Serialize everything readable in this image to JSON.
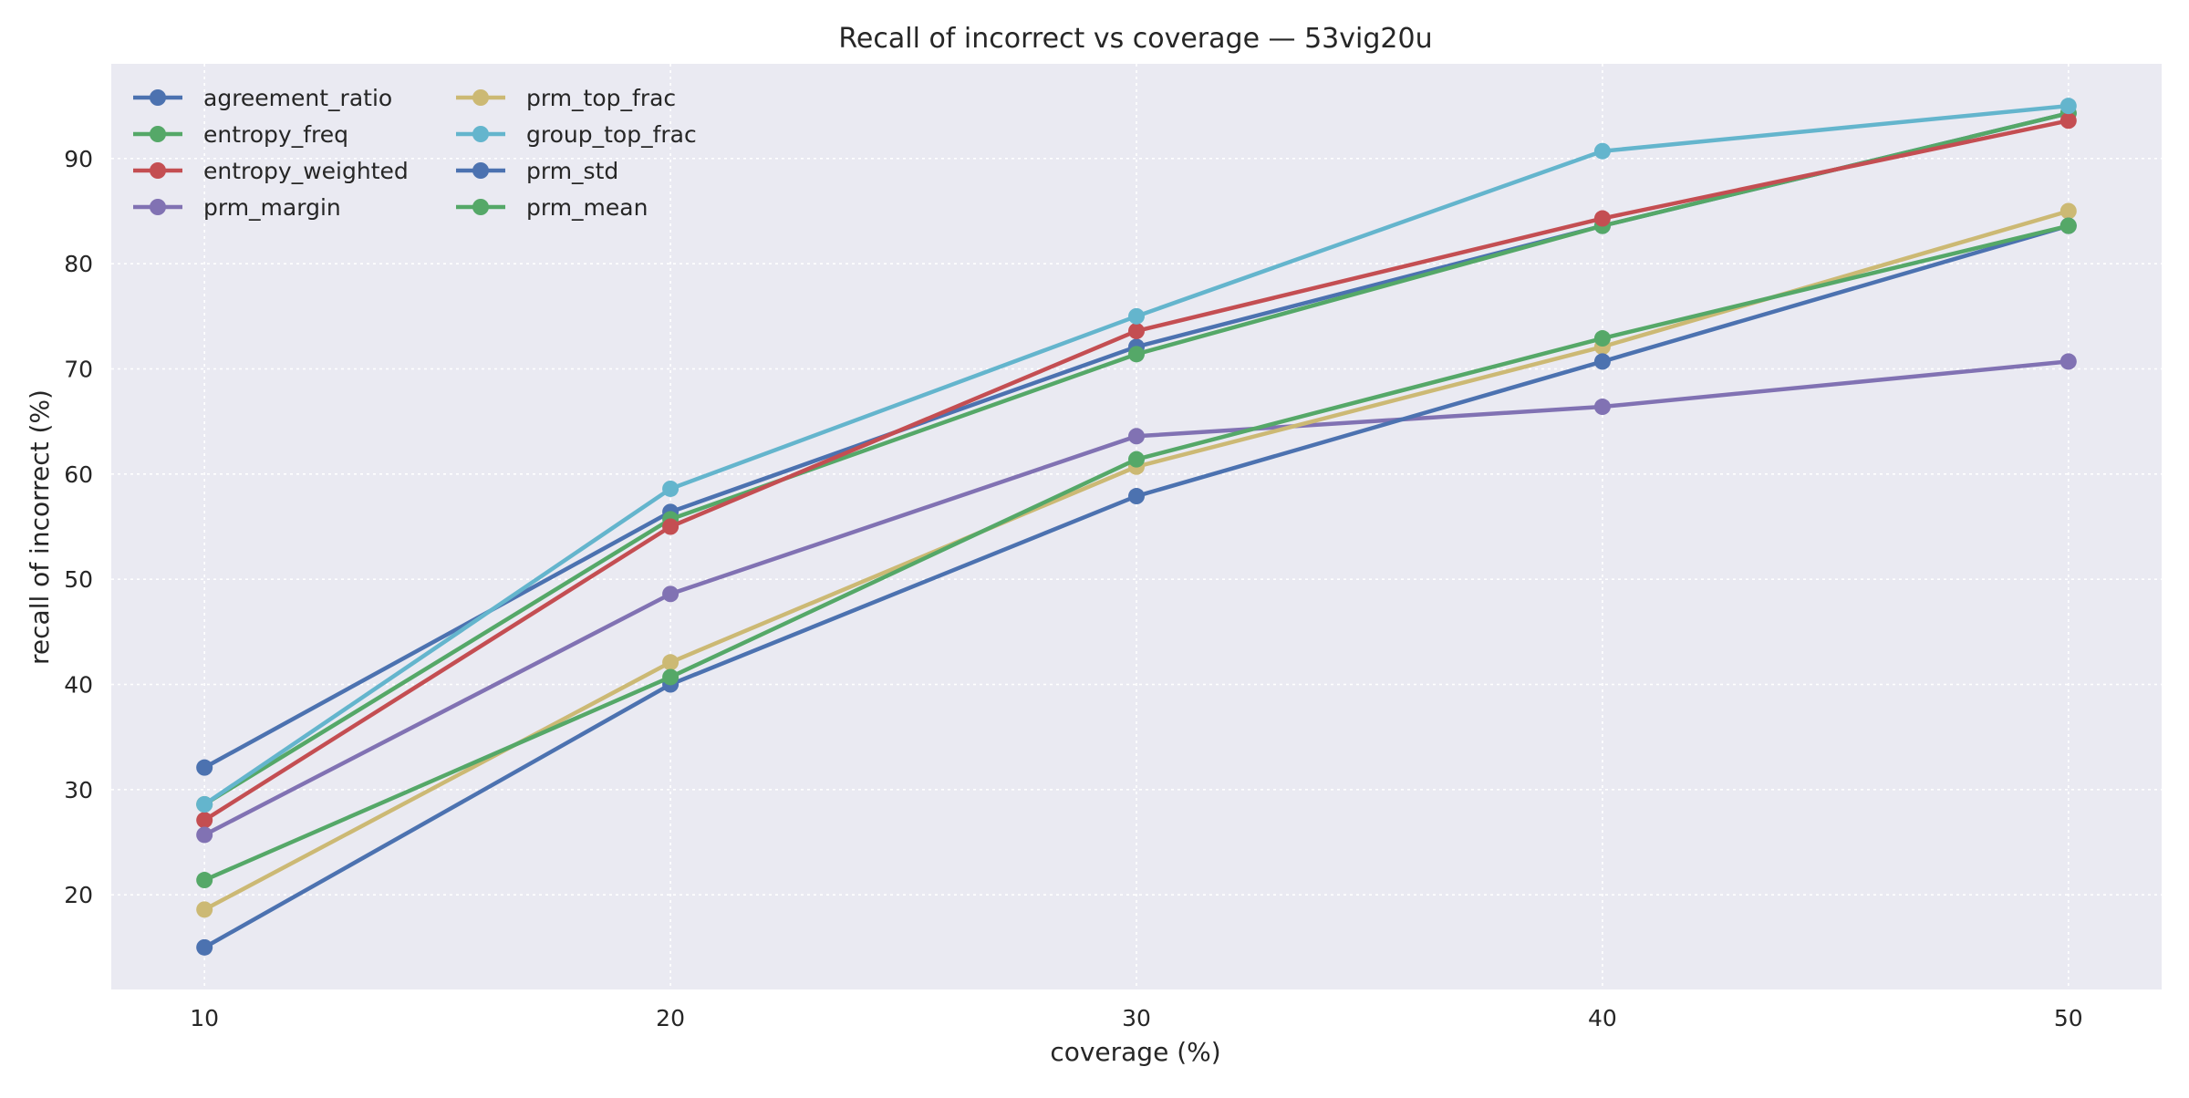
{
  "chart_data": {
    "type": "line",
    "title": "Recall of incorrect vs coverage — 53vig20u",
    "xlabel": "coverage (%)",
    "ylabel": "recall of incorrect (%)",
    "x": [
      10,
      20,
      30,
      40,
      50
    ],
    "xticks": [
      10,
      20,
      30,
      40,
      50
    ],
    "yticks": [
      20,
      30,
      40,
      50,
      60,
      70,
      80,
      90
    ],
    "xlim": [
      8,
      52
    ],
    "ylim": [
      11,
      99
    ],
    "grid": true,
    "legend_position": "top-left",
    "legend_columns": 2,
    "background_color": "#eaeaf2",
    "series": [
      {
        "name": "agreement_ratio",
        "color": "#4c72b0",
        "values": [
          32.1,
          56.4,
          72.1,
          83.6,
          94.3
        ]
      },
      {
        "name": "entropy_freq",
        "color": "#55a868",
        "values": [
          28.6,
          55.7,
          71.4,
          83.6,
          94.3
        ]
      },
      {
        "name": "entropy_weighted",
        "color": "#c44e52",
        "values": [
          27.1,
          55.0,
          73.6,
          84.3,
          93.6
        ]
      },
      {
        "name": "prm_margin",
        "color": "#8172b3",
        "values": [
          25.7,
          48.6,
          63.6,
          66.4,
          70.7
        ]
      },
      {
        "name": "prm_top_frac",
        "color": "#ccb974",
        "values": [
          18.6,
          42.1,
          60.7,
          72.1,
          85.0
        ]
      },
      {
        "name": "group_top_frac",
        "color": "#64b5cd",
        "values": [
          28.6,
          58.6,
          75.0,
          90.7,
          95.0
        ]
      },
      {
        "name": "prm_std",
        "color": "#4c72b0",
        "values": [
          15.0,
          40.0,
          57.9,
          70.7,
          83.6
        ]
      },
      {
        "name": "prm_mean",
        "color": "#55a868",
        "values": [
          21.4,
          40.7,
          61.4,
          72.9,
          83.6
        ]
      }
    ]
  }
}
